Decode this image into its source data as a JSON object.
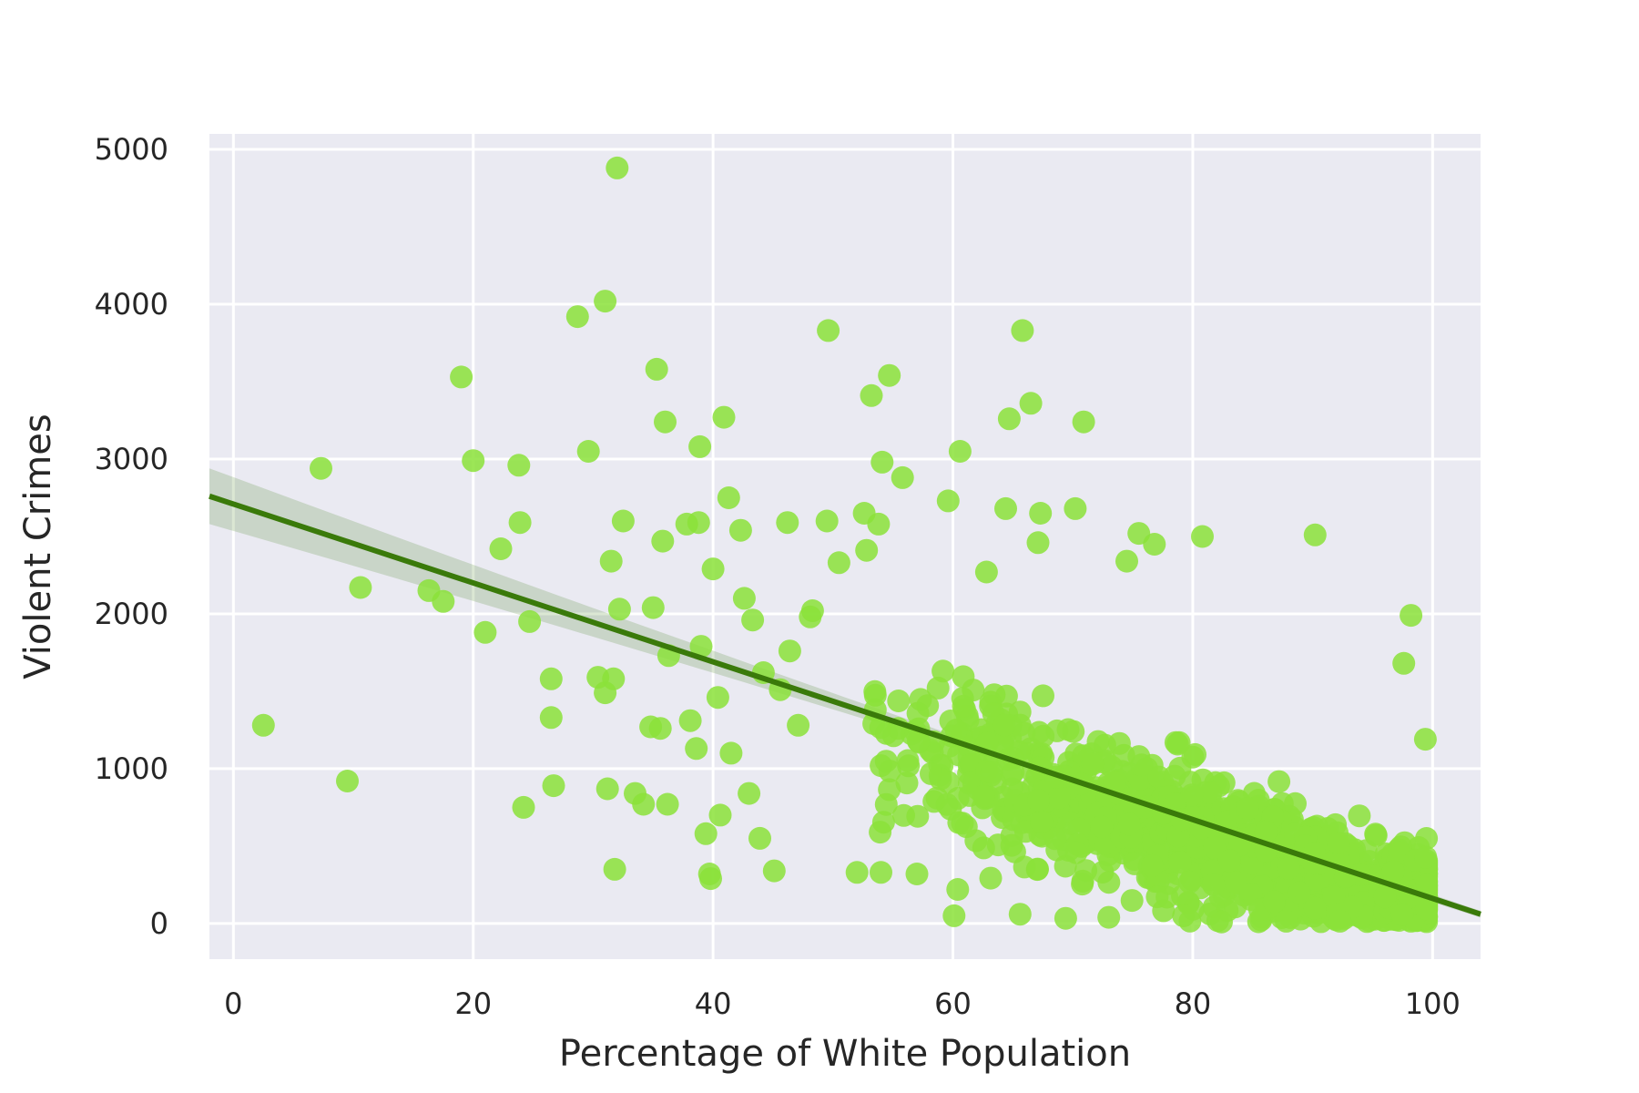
{
  "chart_data": {
    "type": "scatter",
    "title": "",
    "xlabel": "Percentage of White Population",
    "ylabel": "Violent Crimes",
    "xlim": [
      -2,
      104
    ],
    "ylim": [
      -230,
      5100
    ],
    "xticks": [
      0,
      20,
      40,
      60,
      80,
      100
    ],
    "yticks": [
      0,
      1000,
      2000,
      3000,
      4000,
      5000
    ],
    "grid": true,
    "legend": "none",
    "colors": {
      "background": "#eaeaf2",
      "grid": "#ffffff",
      "points": "#8be23a",
      "regression_line": "#3a7a0a",
      "confidence_band": "#3a7a0a"
    },
    "regression": {
      "x": [
        -2,
        104
      ],
      "y": [
        2760,
        60
      ],
      "ci_halfwidth": [
        180,
        30
      ]
    },
    "outliers": [
      {
        "x": 2.5,
        "y": 1280
      },
      {
        "x": 7.3,
        "y": 2940
      },
      {
        "x": 9.5,
        "y": 920
      },
      {
        "x": 10.6,
        "y": 2170
      },
      {
        "x": 16.3,
        "y": 2150
      },
      {
        "x": 17.5,
        "y": 2080
      },
      {
        "x": 19.0,
        "y": 3530
      },
      {
        "x": 20.0,
        "y": 2990
      },
      {
        "x": 21.0,
        "y": 1880
      },
      {
        "x": 22.3,
        "y": 2420
      },
      {
        "x": 23.8,
        "y": 2960
      },
      {
        "x": 23.9,
        "y": 2590
      },
      {
        "x": 24.2,
        "y": 750
      },
      {
        "x": 24.7,
        "y": 1950
      },
      {
        "x": 26.5,
        "y": 1580
      },
      {
        "x": 26.5,
        "y": 1330
      },
      {
        "x": 26.7,
        "y": 890
      },
      {
        "x": 28.7,
        "y": 3920
      },
      {
        "x": 29.6,
        "y": 3050
      },
      {
        "x": 30.4,
        "y": 1590
      },
      {
        "x": 31.0,
        "y": 4020
      },
      {
        "x": 31.0,
        "y": 1490
      },
      {
        "x": 31.2,
        "y": 870
      },
      {
        "x": 31.5,
        "y": 2340
      },
      {
        "x": 31.7,
        "y": 1580
      },
      {
        "x": 31.8,
        "y": 350
      },
      {
        "x": 32.0,
        "y": 4880
      },
      {
        "x": 32.2,
        "y": 2030
      },
      {
        "x": 32.5,
        "y": 2600
      },
      {
        "x": 33.5,
        "y": 840
      },
      {
        "x": 34.2,
        "y": 770
      },
      {
        "x": 34.8,
        "y": 1270
      },
      {
        "x": 35.0,
        "y": 2040
      },
      {
        "x": 35.3,
        "y": 3580
      },
      {
        "x": 35.6,
        "y": 1260
      },
      {
        "x": 35.8,
        "y": 2470
      },
      {
        "x": 36.0,
        "y": 3240
      },
      {
        "x": 36.2,
        "y": 770
      },
      {
        "x": 36.3,
        "y": 1730
      },
      {
        "x": 37.8,
        "y": 2580
      },
      {
        "x": 38.1,
        "y": 1310
      },
      {
        "x": 38.6,
        "y": 1130
      },
      {
        "x": 38.8,
        "y": 2590
      },
      {
        "x": 38.9,
        "y": 3080
      },
      {
        "x": 39.0,
        "y": 1790
      },
      {
        "x": 39.4,
        "y": 580
      },
      {
        "x": 39.7,
        "y": 320
      },
      {
        "x": 39.8,
        "y": 290
      },
      {
        "x": 40.0,
        "y": 2290
      },
      {
        "x": 40.4,
        "y": 1460
      },
      {
        "x": 40.6,
        "y": 700
      },
      {
        "x": 40.9,
        "y": 3270
      },
      {
        "x": 41.3,
        "y": 2750
      },
      {
        "x": 41.5,
        "y": 1100
      },
      {
        "x": 42.3,
        "y": 2540
      },
      {
        "x": 42.6,
        "y": 2100
      },
      {
        "x": 43.0,
        "y": 840
      },
      {
        "x": 43.3,
        "y": 1960
      },
      {
        "x": 43.9,
        "y": 550
      },
      {
        "x": 44.2,
        "y": 1620
      },
      {
        "x": 45.1,
        "y": 340
      },
      {
        "x": 45.6,
        "y": 1510
      },
      {
        "x": 46.2,
        "y": 2590
      },
      {
        "x": 46.4,
        "y": 1760
      },
      {
        "x": 47.1,
        "y": 1280
      },
      {
        "x": 48.1,
        "y": 1980
      },
      {
        "x": 48.3,
        "y": 2020
      },
      {
        "x": 49.6,
        "y": 3830
      },
      {
        "x": 49.5,
        "y": 2600
      },
      {
        "x": 50.5,
        "y": 2330
      },
      {
        "x": 52.6,
        "y": 2650
      },
      {
        "x": 52.8,
        "y": 2410
      },
      {
        "x": 53.2,
        "y": 3410
      },
      {
        "x": 53.8,
        "y": 2580
      },
      {
        "x": 54.1,
        "y": 2980
      },
      {
        "x": 54.7,
        "y": 3540
      },
      {
        "x": 55.8,
        "y": 2880
      },
      {
        "x": 59.6,
        "y": 2730
      },
      {
        "x": 60.6,
        "y": 3050
      },
      {
        "x": 62.8,
        "y": 2270
      },
      {
        "x": 64.4,
        "y": 2680
      },
      {
        "x": 64.7,
        "y": 3260
      },
      {
        "x": 65.8,
        "y": 3830
      },
      {
        "x": 66.5,
        "y": 3360
      },
      {
        "x": 67.1,
        "y": 2460
      },
      {
        "x": 67.3,
        "y": 2650
      },
      {
        "x": 70.2,
        "y": 2680
      },
      {
        "x": 70.9,
        "y": 3240
      },
      {
        "x": 74.5,
        "y": 2340
      },
      {
        "x": 75.5,
        "y": 2520
      },
      {
        "x": 76.8,
        "y": 2450
      },
      {
        "x": 80.8,
        "y": 2500
      },
      {
        "x": 90.2,
        "y": 2510
      },
      {
        "x": 97.6,
        "y": 1680
      },
      {
        "x": 98.2,
        "y": 1990
      },
      {
        "x": 99.4,
        "y": 1190
      },
      {
        "x": 60.1,
        "y": 50
      },
      {
        "x": 65.6,
        "y": 60
      },
      {
        "x": 73.0,
        "y": 40
      },
      {
        "x": 82.4,
        "y": 10
      },
      {
        "x": 87.8,
        "y": 15
      },
      {
        "x": 52.0,
        "y": 330
      },
      {
        "x": 54.0,
        "y": 330
      },
      {
        "x": 57.0,
        "y": 320
      },
      {
        "x": 60.4,
        "y": 220
      }
    ],
    "dense_cloud": {
      "count": 1250,
      "x_range": [
        52,
        100
      ],
      "y_mean_at_x": "regression",
      "y_spread": 420
    }
  }
}
